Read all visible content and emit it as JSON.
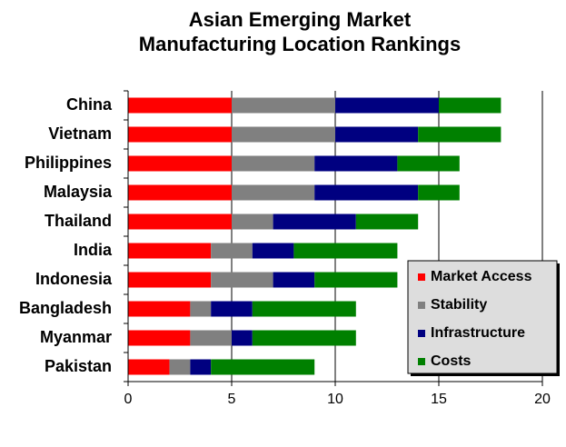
{
  "chart_data": {
    "type": "stacked-bar-horizontal",
    "title": "Asian Emerging Market Manufacturing Location Rankings",
    "categories": [
      "China",
      "Vietnam",
      "Philippines",
      "Malaysia",
      "Thailand",
      "India",
      "Indonesia",
      "Bangladesh",
      "Myanmar",
      "Pakistan"
    ],
    "series": [
      {
        "name": "Market Access",
        "color": "#ff0000",
        "values": [
          5,
          5,
          5,
          5,
          5,
          4,
          4,
          3,
          3,
          2
        ]
      },
      {
        "name": "Stability",
        "color": "#808080",
        "values": [
          5,
          5,
          4,
          4,
          2,
          2,
          3,
          1,
          2,
          1
        ]
      },
      {
        "name": "Infrastructure",
        "color": "#000080",
        "values": [
          5,
          4,
          4,
          5,
          4,
          2,
          2,
          2,
          1,
          1
        ]
      },
      {
        "name": "Costs",
        "color": "#008000",
        "values": [
          3,
          4,
          3,
          2,
          3,
          5,
          4,
          5,
          5,
          5
        ]
      }
    ],
    "xlim": [
      0,
      20
    ],
    "xticks": [
      0,
      5,
      10,
      15,
      20
    ],
    "grid": true,
    "legend": "lower-right"
  }
}
